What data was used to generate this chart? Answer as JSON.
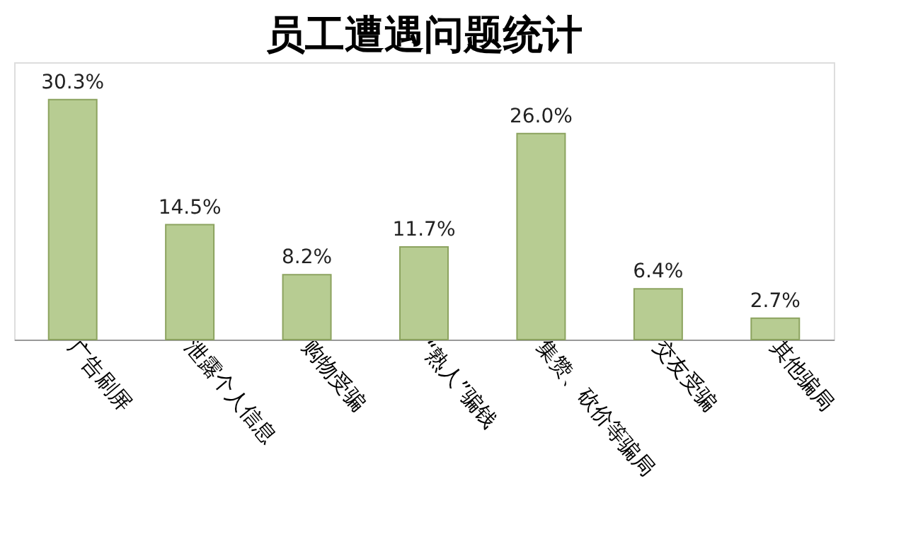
{
  "chart_data": {
    "type": "bar",
    "title": "员工遭遇问题统计",
    "categories": [
      "广告刷屏",
      "泄露个人信息",
      "购物受骗",
      "“熟人”骗钱",
      "集赞、砍价等骗局",
      "交友受骗",
      "其他骗局"
    ],
    "values": [
      30.3,
      14.5,
      8.2,
      11.7,
      26.0,
      6.4,
      2.7
    ],
    "value_labels": [
      "30.3%",
      "14.5%",
      "8.2%",
      "11.7%",
      "26.0%",
      "6.4%",
      "2.7%"
    ],
    "color": "#b7cc92",
    "grid": false,
    "tick_labels": "x"
  }
}
